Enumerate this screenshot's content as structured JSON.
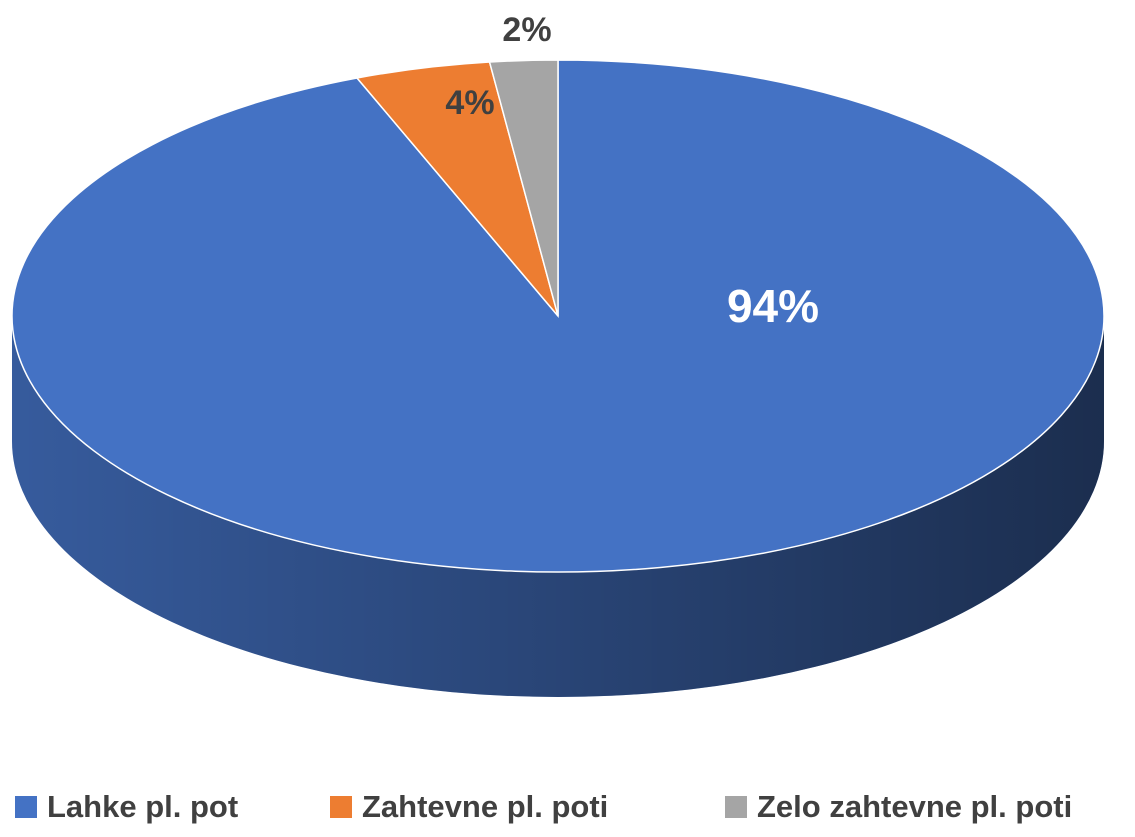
{
  "chart_data": {
    "type": "pie",
    "three_d": true,
    "categories": [
      "Lahke pl. pot",
      "Zahtevne pl. poti",
      "Zelo zahtevne pl. poti"
    ],
    "values": [
      94,
      4,
      2
    ],
    "value_labels": [
      "94%",
      "4%",
      "2%"
    ],
    "colors": [
      "#4472c4",
      "#ed7d31",
      "#a5a5a5"
    ],
    "legend": "bottom"
  }
}
